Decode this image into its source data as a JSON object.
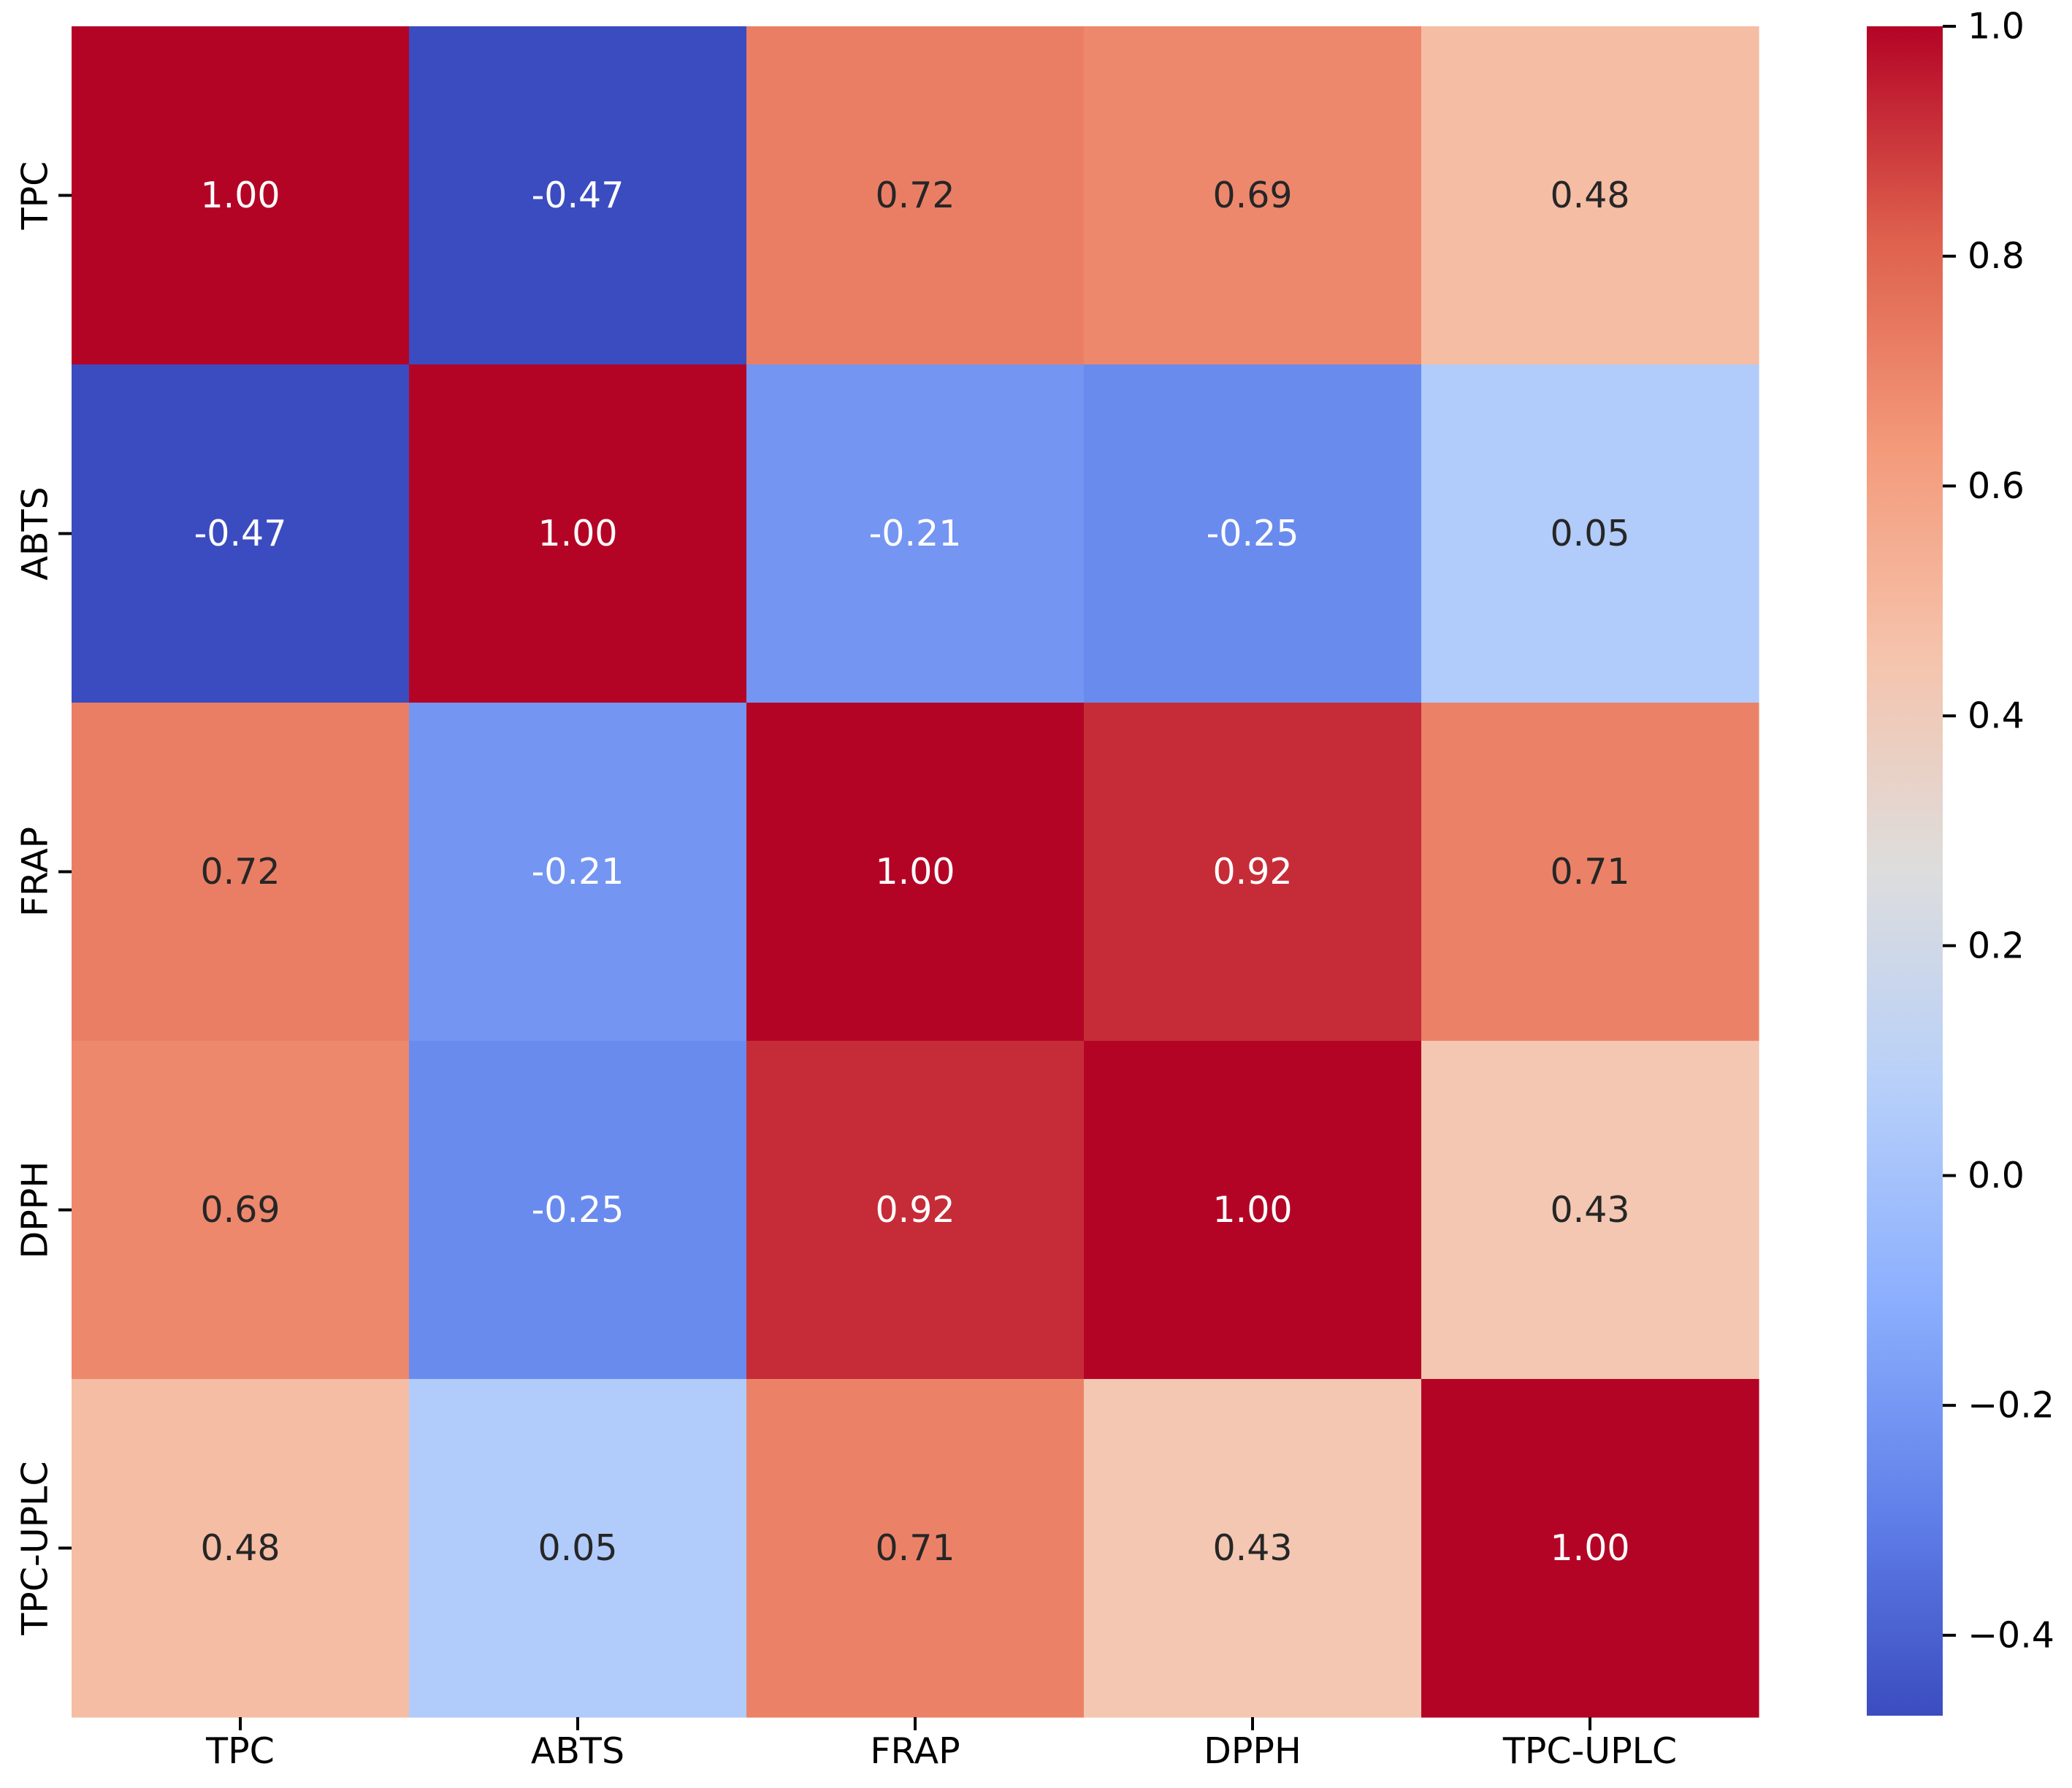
{
  "chart_data": {
    "type": "heatmap",
    "title": "",
    "xlabel": "",
    "ylabel": "",
    "rows": [
      "TPC",
      "ABTS",
      "FRAP",
      "DPPH",
      "TPC-UPLC"
    ],
    "columns": [
      "TPC",
      "ABTS",
      "FRAP",
      "DPPH",
      "TPC-UPLC"
    ],
    "values": [
      [
        1.0,
        -0.47,
        0.72,
        0.69,
        0.48
      ],
      [
        -0.47,
        1.0,
        -0.21,
        -0.25,
        0.05
      ],
      [
        0.72,
        -0.21,
        1.0,
        0.92,
        0.71
      ],
      [
        0.69,
        -0.25,
        0.92,
        1.0,
        0.43
      ],
      [
        0.48,
        0.05,
        0.71,
        0.43,
        1.0
      ]
    ],
    "cell_labels": [
      [
        "1.00",
        "-0.47",
        "0.72",
        "0.69",
        "0.48"
      ],
      [
        "-0.47",
        "1.00",
        "-0.21",
        "-0.25",
        "0.05"
      ],
      [
        "0.72",
        "-0.21",
        "1.00",
        "0.92",
        "0.71"
      ],
      [
        "0.69",
        "-0.25",
        "0.92",
        "1.00",
        "0.43"
      ],
      [
        "0.48",
        "0.05",
        "0.71",
        "0.43",
        "1.00"
      ]
    ],
    "colormap": "coolwarm",
    "vmin": -0.47,
    "vmax": 1.0,
    "colorbar": {
      "ticks": [
        1.0,
        0.8,
        0.6,
        0.4,
        0.2,
        0.0,
        -0.2,
        -0.4
      ],
      "tick_labels": [
        "1.0",
        "0.8",
        "0.6",
        "0.4",
        "0.2",
        "0.0",
        "−0.2",
        "−0.4"
      ]
    }
  }
}
